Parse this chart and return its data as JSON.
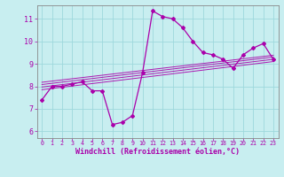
{
  "xlabel": "Windchill (Refroidissement éolien,°C)",
  "background_color": "#c8eef0",
  "grid_color": "#9ed8dc",
  "line_color": "#aa00aa",
  "spine_color": "#888888",
  "xlim": [
    -0.5,
    23.5
  ],
  "ylim": [
    5.7,
    11.6
  ],
  "yticks": [
    6,
    7,
    8,
    9,
    10,
    11
  ],
  "xticks": [
    0,
    1,
    2,
    3,
    4,
    5,
    6,
    7,
    8,
    9,
    10,
    11,
    12,
    13,
    14,
    15,
    16,
    17,
    18,
    19,
    20,
    21,
    22,
    23
  ],
  "main_line_x": [
    0,
    1,
    2,
    3,
    4,
    5,
    6,
    7,
    8,
    9,
    10,
    11,
    12,
    13,
    14,
    15,
    16,
    17,
    18,
    19,
    20,
    21,
    22,
    23
  ],
  "main_line_y": [
    7.4,
    8.0,
    8.0,
    8.1,
    8.2,
    7.8,
    7.8,
    6.3,
    6.4,
    6.7,
    8.6,
    11.35,
    11.1,
    11.0,
    10.6,
    10.0,
    9.5,
    9.4,
    9.2,
    8.8,
    9.4,
    9.7,
    9.9,
    9.2
  ],
  "diag_lines": [
    {
      "x": [
        0,
        23
      ],
      "y": [
        7.85,
        9.1
      ]
    },
    {
      "x": [
        0,
        23
      ],
      "y": [
        7.97,
        9.2
      ]
    },
    {
      "x": [
        0,
        23
      ],
      "y": [
        8.08,
        9.3
      ]
    },
    {
      "x": [
        0,
        23
      ],
      "y": [
        8.18,
        9.38
      ]
    }
  ],
  "xlabel_fontsize": 6,
  "xtick_fontsize": 4.8,
  "ytick_fontsize": 6
}
